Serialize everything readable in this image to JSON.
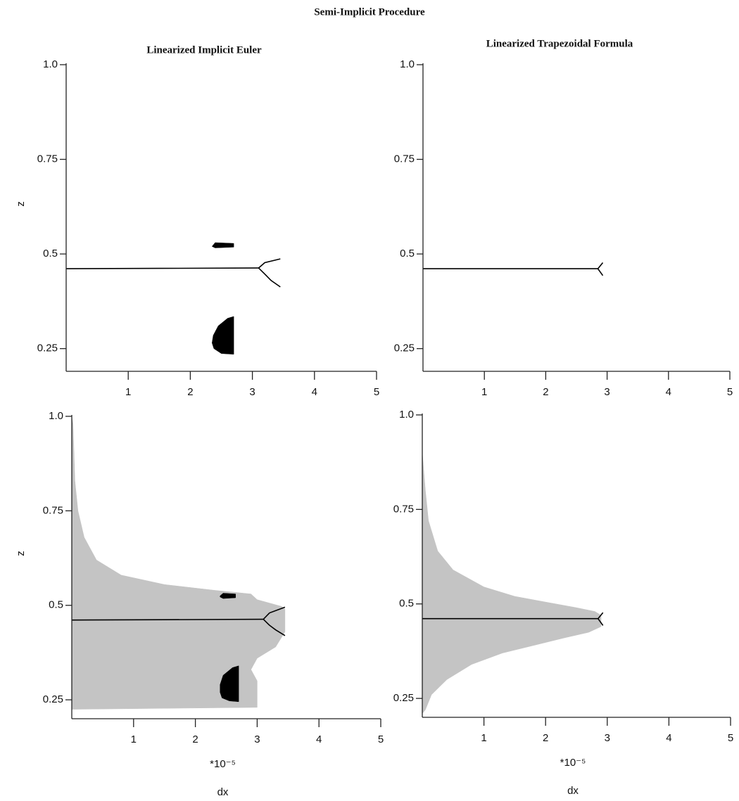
{
  "title": "Semi-Implicit Procedure",
  "columns": [
    "Linearized Implicit Euler",
    "Linearized Trapezoidal Formula"
  ],
  "chart_data": [
    {
      "type": "line",
      "ylabel": "z",
      "xlim": [
        0,
        5
      ],
      "ylim": [
        0.19,
        1
      ],
      "xticks": [
        1,
        2,
        3,
        4,
        5
      ],
      "yticks": [
        0.25,
        0.5,
        0.75,
        {
          "value": 1,
          "label": "1.0"
        }
      ],
      "series": [
        {
          "color": "#000000",
          "fill": true,
          "x": [
            2.35,
            2.4,
            2.7,
            2.7,
            2.4,
            2.35
          ],
          "values": [
            0.52,
            0.53,
            0.528,
            0.518,
            0.516,
            0.52
          ]
        },
        {
          "color": "#000000",
          "fill": true,
          "x": [
            2.7,
            2.6,
            2.45,
            2.37,
            2.35,
            2.38,
            2.5,
            2.7
          ],
          "values": [
            0.335,
            0.33,
            0.31,
            0.285,
            0.265,
            0.25,
            0.237,
            0.235
          ]
        },
        {
          "color": "#000000",
          "fill": false,
          "x": [
            0,
            1.5,
            3.1
          ],
          "values": [
            0.461,
            0.462,
            0.463
          ]
        },
        {
          "color": "#000000",
          "fill": false,
          "x": [
            3.1,
            3.2,
            3.45
          ],
          "values": [
            0.463,
            0.477,
            0.487
          ]
        },
        {
          "color": "#000000",
          "fill": false,
          "x": [
            3.1,
            3.2,
            3.3,
            3.45
          ],
          "values": [
            0.463,
            0.447,
            0.43,
            0.413
          ]
        }
      ]
    },
    {
      "type": "line",
      "xlim": [
        0,
        5
      ],
      "ylim": [
        0.19,
        1
      ],
      "xticks": [
        1,
        2,
        3,
        4,
        5
      ],
      "yticks": [
        0.25,
        0.5,
        0.75,
        {
          "value": 1,
          "label": "1.0"
        }
      ],
      "series": [
        {
          "color": "#000000",
          "fill": false,
          "x": [
            0,
            1.5,
            2.85
          ],
          "values": [
            0.461,
            0.461,
            0.461
          ]
        },
        {
          "color": "#000000",
          "fill": false,
          "x": [
            2.85,
            2.93
          ],
          "values": [
            0.461,
            0.477
          ]
        },
        {
          "color": "#000000",
          "fill": false,
          "x": [
            2.85,
            2.93
          ],
          "values": [
            0.461,
            0.443
          ]
        }
      ]
    },
    {
      "type": "line",
      "ylabel": "z",
      "xunit": "*10⁻⁵",
      "xlabel": "dx",
      "xlim": [
        0,
        5
      ],
      "ylim": [
        0.2,
        1
      ],
      "xticks": [
        1,
        2,
        3,
        4,
        5
      ],
      "yticks": [
        0.25,
        0.5,
        0.75,
        {
          "value": 1,
          "label": "1.0"
        }
      ],
      "series": [
        {
          "color": "#c4c4c4",
          "fill": true,
          "x": [
            0,
            0.02,
            0.05,
            0.1,
            0.2,
            0.4,
            0.8,
            1.5,
            2.3,
            2.9,
            3.0,
            3.4,
            3.45,
            3.45,
            3.3,
            3.0,
            2.9,
            3.0,
            3.0,
            0
          ],
          "values": [
            1.0,
            0.98,
            0.83,
            0.75,
            0.68,
            0.62,
            0.58,
            0.555,
            0.54,
            0.53,
            0.515,
            0.497,
            0.49,
            0.43,
            0.39,
            0.36,
            0.33,
            0.3,
            0.23,
            0.225
          ]
        },
        {
          "color": "#000000",
          "fill": true,
          "x": [
            2.4,
            2.45,
            2.65,
            2.65,
            2.45,
            2.4
          ],
          "values": [
            0.525,
            0.532,
            0.53,
            0.52,
            0.518,
            0.522
          ]
        },
        {
          "color": "#000000",
          "fill": true,
          "x": [
            2.7,
            2.6,
            2.45,
            2.4,
            2.4,
            2.43,
            2.55,
            2.7
          ],
          "values": [
            0.34,
            0.335,
            0.315,
            0.29,
            0.27,
            0.255,
            0.247,
            0.245
          ]
        },
        {
          "color": "#000000",
          "fill": false,
          "x": [
            0,
            1.5,
            3.1
          ],
          "values": [
            0.461,
            0.462,
            0.463
          ]
        },
        {
          "color": "#000000",
          "fill": false,
          "x": [
            3.1,
            3.2,
            3.45
          ],
          "values": [
            0.463,
            0.48,
            0.495
          ]
        },
        {
          "color": "#000000",
          "fill": false,
          "x": [
            3.1,
            3.2,
            3.3,
            3.45
          ],
          "values": [
            0.463,
            0.447,
            0.435,
            0.42
          ]
        }
      ]
    },
    {
      "type": "line",
      "xunit": "*10⁻⁵",
      "xlabel": "dx",
      "xlim": [
        0,
        5
      ],
      "ylim": [
        0.2,
        1
      ],
      "xticks": [
        1,
        2,
        3,
        4,
        5
      ],
      "yticks": [
        0.25,
        0.5,
        0.75,
        {
          "value": 1,
          "label": "1.0"
        }
      ],
      "series": [
        {
          "color": "#c4c4c4",
          "fill": true,
          "x": [
            0,
            0.05,
            0.1,
            0.25,
            0.5,
            1,
            1.5,
            2,
            2.5,
            2.8,
            2.9,
            2.9,
            2.7,
            2.3,
            1.8,
            1.3,
            0.8,
            0.4,
            0.15,
            0.05,
            0
          ],
          "values": [
            0.9,
            0.8,
            0.72,
            0.64,
            0.59,
            0.545,
            0.52,
            0.505,
            0.49,
            0.48,
            0.47,
            0.44,
            0.425,
            0.41,
            0.39,
            0.37,
            0.34,
            0.3,
            0.26,
            0.22,
            0.21
          ]
        },
        {
          "color": "#000000",
          "fill": false,
          "x": [
            0,
            1.5,
            2.85
          ],
          "values": [
            0.461,
            0.461,
            0.461
          ]
        },
        {
          "color": "#000000",
          "fill": false,
          "x": [
            2.85,
            2.93
          ],
          "values": [
            0.461,
            0.477
          ]
        },
        {
          "color": "#000000",
          "fill": false,
          "x": [
            2.85,
            2.93
          ],
          "values": [
            0.461,
            0.443
          ]
        }
      ]
    }
  ]
}
